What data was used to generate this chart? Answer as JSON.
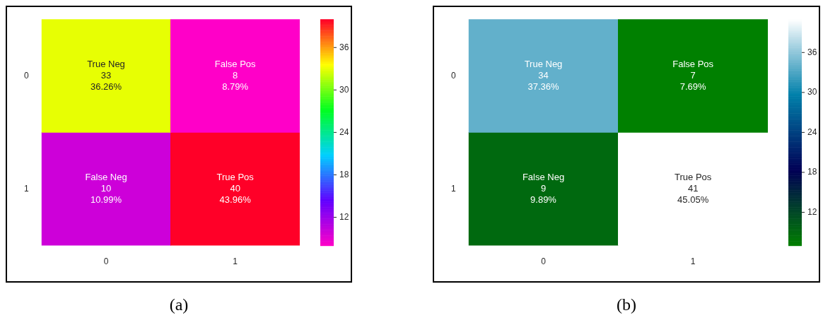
{
  "chart_data": [
    {
      "type": "heatmap",
      "categories": [
        "0",
        "1"
      ],
      "y_categories": [
        "0",
        "1"
      ],
      "cells": [
        [
          33,
          8
        ],
        [
          10,
          40
        ]
      ],
      "cell_labels": [
        [
          "True Neg\n33\n36.26%",
          "False Pos\n8\n8.79%"
        ],
        [
          "False Neg\n10\n10.99%",
          "True Pos\n40\n43.96%"
        ]
      ],
      "clim": [
        8,
        40
      ],
      "cticks": [
        12,
        18,
        24,
        30,
        36
      ],
      "colors": [
        "#ff00c8",
        "#6000ff",
        "#00d0ff",
        "#00ff20",
        "#ffff00",
        "#ff0028"
      ],
      "annotations": [
        "(a)"
      ]
    },
    {
      "type": "heatmap",
      "categories": [
        "0",
        "1"
      ],
      "y_categories": [
        "0",
        "1"
      ],
      "cells": [
        [
          34,
          7
        ],
        [
          9,
          41
        ]
      ],
      "cell_labels": [
        [
          "True Neg\n34\n37.36%",
          "False Pos\n7\n7.69%"
        ],
        [
          "False Neg\n9\n9.89%",
          "True Pos\n41\n45.05%"
        ]
      ],
      "clim": [
        7,
        41
      ],
      "cticks": [
        12,
        18,
        24,
        30,
        36
      ],
      "colors": [
        "#008000",
        "#00402b",
        "#000055",
        "#004080",
        "#0080aa",
        "#80bfd5",
        "#ffffff"
      ],
      "annotations": [
        "(b)"
      ]
    }
  ]
}
